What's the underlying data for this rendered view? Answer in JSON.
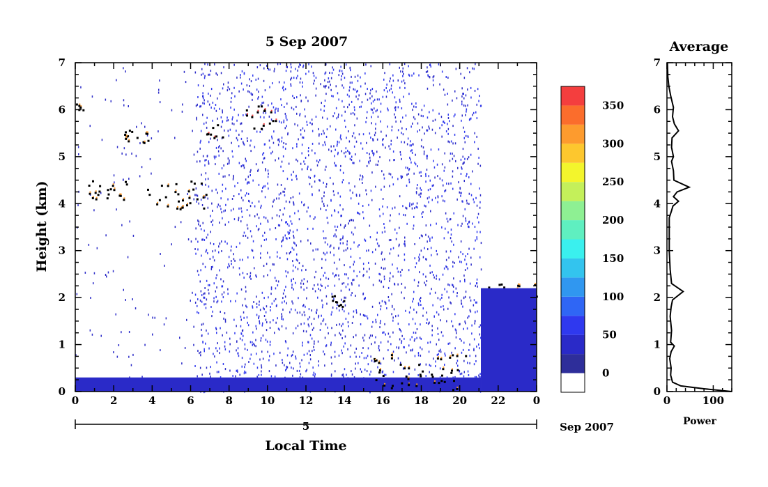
{
  "chart_data": [
    {
      "type": "heatmap",
      "title": "5 Sep 2007",
      "xlabel": "Local Time",
      "ylabel": "Height (km)",
      "x_range": [
        0,
        24
      ],
      "y_range": [
        0,
        7
      ],
      "x_ticks": [
        "0",
        "2",
        "4",
        "6",
        "8",
        "10",
        "12",
        "14",
        "16",
        "18",
        "20",
        "22",
        "0"
      ],
      "y_ticks": [
        "0",
        "1",
        "2",
        "3",
        "4",
        "5",
        "6",
        "7"
      ],
      "date_axis": {
        "day": "5",
        "month_year": "Sep 2007"
      },
      "colorbar": {
        "ticks": [
          "0",
          "50",
          "100",
          "150",
          "200",
          "250",
          "300",
          "350"
        ],
        "range": [
          -25,
          375
        ],
        "colors": [
          "#ffffff",
          "#2e2e9a",
          "#2a2ac8",
          "#2f39ef",
          "#2f66f5",
          "#3097f0",
          "#33c4ee",
          "#3af0ee",
          "#5fefc0",
          "#8ef093",
          "#c4f05a",
          "#f3f52c",
          "#fdc72e",
          "#fd9b2e",
          "#fb6d2c",
          "#f43e3e"
        ]
      },
      "features": [
        {
          "name": "surface layer",
          "x": [
            0,
            21.1
          ],
          "y": [
            0,
            0.3
          ],
          "level": 40
        },
        {
          "name": "cloud layer",
          "x": [
            0,
            0.5
          ],
          "y": [
            6.0,
            6.3
          ],
          "level": 300
        },
        {
          "name": "cloud layer",
          "x": [
            0.6,
            2.8
          ],
          "y": [
            4.1,
            4.5
          ],
          "level": 300
        },
        {
          "name": "cloud layer",
          "x": [
            2.3,
            3.8
          ],
          "y": [
            5.3,
            5.6
          ],
          "level": 300
        },
        {
          "name": "cloud layer",
          "x": [
            3.6,
            6.8
          ],
          "y": [
            3.9,
            4.5
          ],
          "level": 320
        },
        {
          "name": "cloud layer",
          "x": [
            6.8,
            7.8
          ],
          "y": [
            5.4,
            5.7
          ],
          "level": 350
        },
        {
          "name": "cloud layer",
          "x": [
            8.8,
            10.4
          ],
          "y": [
            5.6,
            6.1
          ],
          "level": 360
        },
        {
          "name": "cloud layer",
          "x": [
            13.2,
            14.2
          ],
          "y": [
            1.8,
            2.1
          ],
          "level": 280
        },
        {
          "name": "cloud layer",
          "x": [
            15.5,
            20.5
          ],
          "y": [
            0.05,
            0.8
          ],
          "level": 300
        },
        {
          "name": "cloud layer",
          "x": [
            21.1,
            24
          ],
          "y": [
            2.0,
            2.3
          ],
          "level": 320
        },
        {
          "name": "rain echo",
          "x": [
            21.1,
            24
          ],
          "y": [
            0,
            2.2
          ],
          "level": 40
        }
      ]
    },
    {
      "type": "line",
      "title": "Average",
      "xlabel": "Power",
      "x_range": [
        0,
        140
      ],
      "y_range": [
        0,
        7
      ],
      "x_ticks": [
        "0",
        "100"
      ],
      "y_ticks": [
        "0",
        "1",
        "2",
        "3",
        "4",
        "5",
        "6",
        "7"
      ],
      "series": [
        {
          "points": [
            [
              140,
              0.0
            ],
            [
              80,
              0.06
            ],
            [
              30,
              0.12
            ],
            [
              12,
              0.2
            ],
            [
              8,
              0.35
            ],
            [
              9,
              0.5
            ],
            [
              6,
              0.7
            ],
            [
              9,
              0.85
            ],
            [
              16,
              0.97
            ],
            [
              8,
              1.05
            ],
            [
              10,
              1.3
            ],
            [
              7,
              1.6
            ],
            [
              9,
              1.8
            ],
            [
              12,
              1.95
            ],
            [
              35,
              2.13
            ],
            [
              10,
              2.3
            ],
            [
              7,
              2.6
            ],
            [
              5,
              3.0
            ],
            [
              5,
              3.4
            ],
            [
              5,
              3.7
            ],
            [
              10,
              3.85
            ],
            [
              13,
              3.95
            ],
            [
              25,
              4.05
            ],
            [
              14,
              4.15
            ],
            [
              22,
              4.25
            ],
            [
              48,
              4.35
            ],
            [
              15,
              4.5
            ],
            [
              14,
              4.7
            ],
            [
              10,
              4.9
            ],
            [
              14,
              5.0
            ],
            [
              10,
              5.2
            ],
            [
              11,
              5.4
            ],
            [
              25,
              5.55
            ],
            [
              16,
              5.7
            ],
            [
              12,
              5.85
            ],
            [
              14,
              6.05
            ],
            [
              8,
              6.3
            ],
            [
              4,
              6.5
            ],
            [
              2,
              6.7
            ],
            [
              1,
              7.0
            ]
          ]
        }
      ]
    }
  ]
}
